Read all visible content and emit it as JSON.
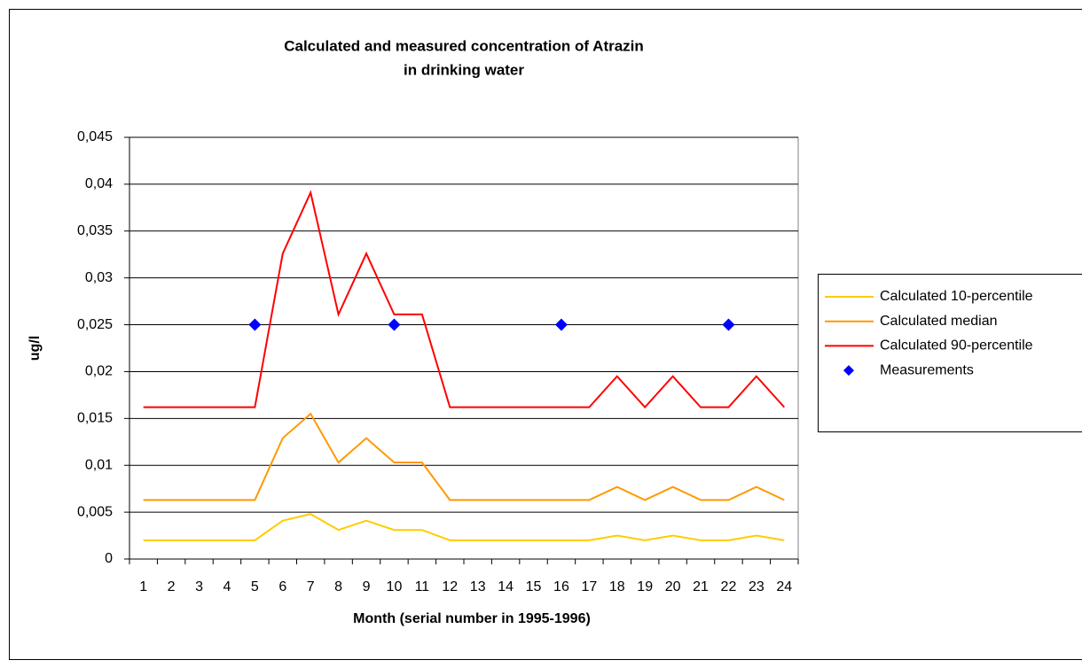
{
  "chart_data": {
    "type": "line",
    "title": [
      "Calculated and measured concentration of Atrazin",
      "in drinking water"
    ],
    "x_label": "Month (serial number in 1995-1996)",
    "y_label": "ug/l",
    "categories": [
      "1",
      "2",
      "3",
      "4",
      "5",
      "6",
      "7",
      "8",
      "9",
      "10",
      "11",
      "12",
      "13",
      "14",
      "15",
      "16",
      "17",
      "18",
      "19",
      "20",
      "21",
      "22",
      "23",
      "24"
    ],
    "ylim": [
      0,
      0.045
    ],
    "yticks": [
      0,
      {
        "value": 0.005,
        "label": "0,005"
      },
      {
        "value": 0.01,
        "label": "0,01"
      },
      {
        "value": 0.015,
        "label": "0,015"
      },
      {
        "value": 0.02,
        "label": "0,02"
      },
      {
        "value": 0.025,
        "label": "0,025"
      },
      {
        "value": 0.03,
        "label": "0,03"
      },
      {
        "value": 0.035,
        "label": "0,035"
      },
      {
        "value": 0.04,
        "label": "0,04"
      },
      {
        "value": 0.045,
        "label": "0,045"
      }
    ],
    "grid": true,
    "legend": "right",
    "series": [
      {
        "name": "Calculated 10-percentile",
        "color": "#ffcc00",
        "type": "line",
        "values": [
          0.002,
          0.002,
          0.002,
          0.002,
          0.002,
          0.0041,
          0.0048,
          0.0031,
          0.0041,
          0.0031,
          0.0031,
          0.002,
          0.002,
          0.002,
          0.002,
          0.002,
          0.002,
          0.0025,
          0.002,
          0.0025,
          0.002,
          0.002,
          0.0025,
          0.002
        ]
      },
      {
        "name": "Calculated median",
        "color": "#ff9900",
        "type": "line",
        "values": [
          0.0063,
          0.0063,
          0.0063,
          0.0063,
          0.0063,
          0.0129,
          0.0155,
          0.0103,
          0.0129,
          0.0103,
          0.0103,
          0.0063,
          0.0063,
          0.0063,
          0.0063,
          0.0063,
          0.0063,
          0.0077,
          0.0063,
          0.0077,
          0.0063,
          0.0063,
          0.0077,
          0.0063
        ]
      },
      {
        "name": "Calculated 90-percentile",
        "color": "#ff0000",
        "type": "line",
        "values": [
          0.0162,
          0.0162,
          0.0162,
          0.0162,
          0.0162,
          0.0326,
          0.0391,
          0.0261,
          0.0326,
          0.0261,
          0.0261,
          0.0162,
          0.0162,
          0.0162,
          0.0162,
          0.0162,
          0.0162,
          0.0195,
          0.0162,
          0.0195,
          0.0162,
          0.0162,
          0.0195,
          0.0162
        ]
      },
      {
        "name": "Measurements",
        "color": "#0000ff",
        "type": "scatter",
        "values": [
          null,
          null,
          null,
          null,
          0.025,
          null,
          null,
          null,
          null,
          0.025,
          null,
          null,
          null,
          null,
          null,
          0.025,
          null,
          null,
          null,
          null,
          null,
          0.025,
          null,
          null
        ]
      }
    ]
  }
}
